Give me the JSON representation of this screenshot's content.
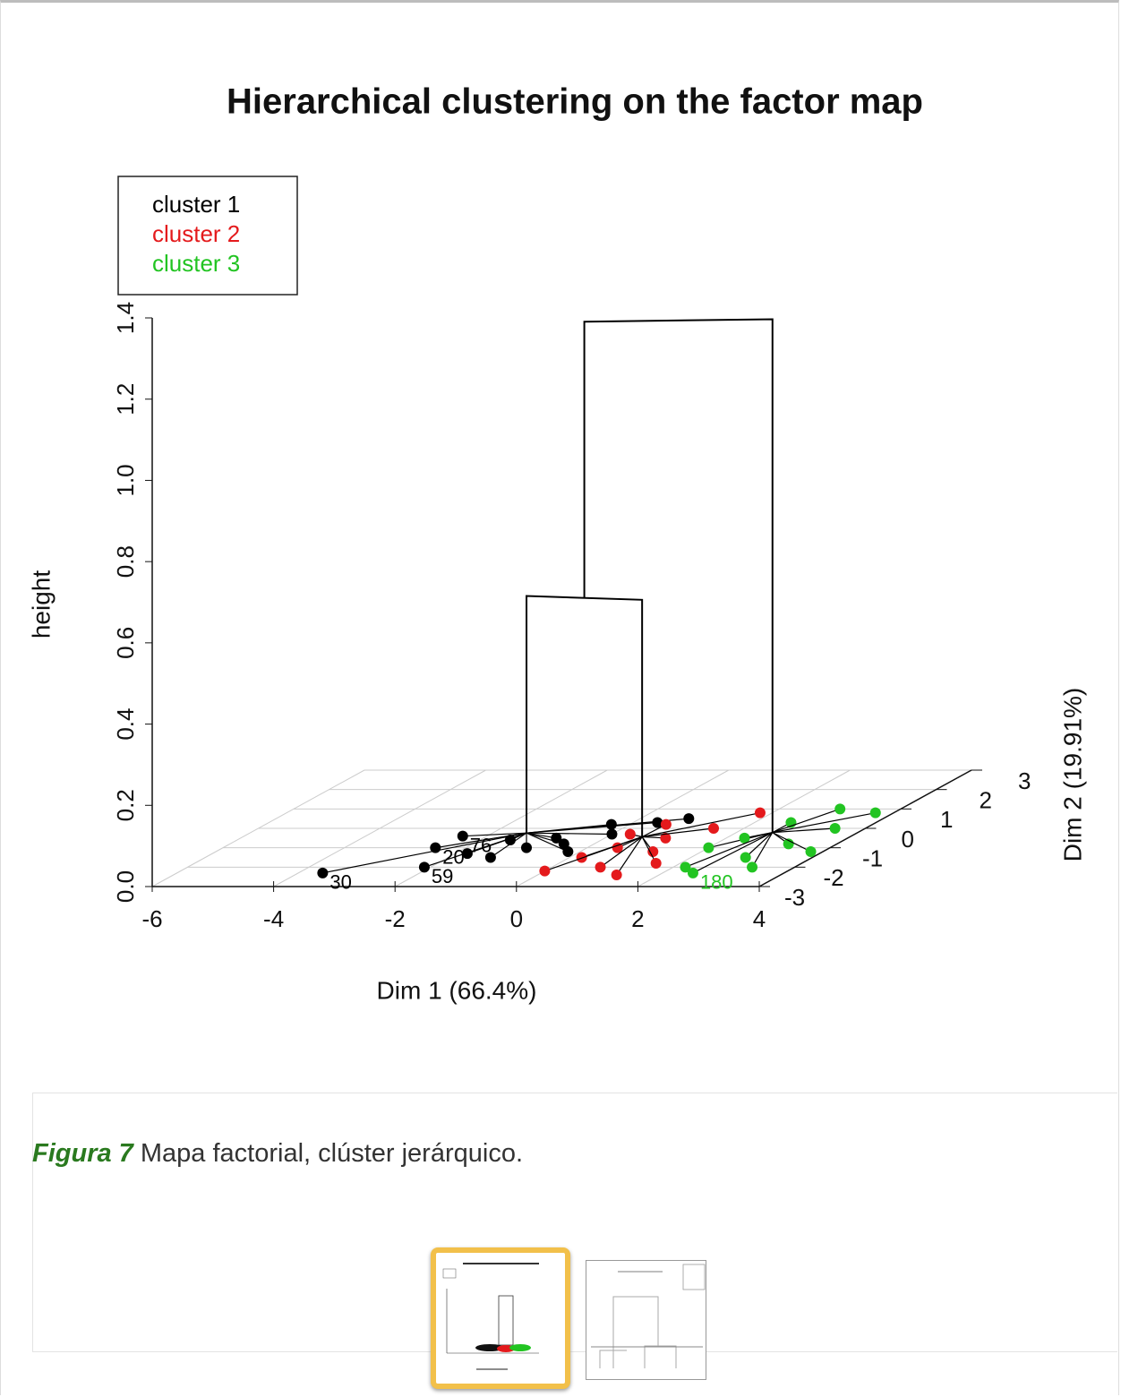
{
  "chart_data": {
    "type": "hcpc3d",
    "title": "Hierarchical clustering on the factor map",
    "xlabel": "Dim 1 (66.4%)",
    "ylabel": "Dim 2 (19.91%)",
    "zlabel": "height",
    "xlim": [
      -6,
      4
    ],
    "xticks": [
      -6,
      -4,
      -2,
      0,
      2,
      4
    ],
    "ylim": [
      -3,
      3
    ],
    "yticks": [
      -3,
      -2,
      -1,
      0,
      1,
      2,
      3
    ],
    "zlim": [
      0,
      1.4
    ],
    "zticks": [
      {
        "value": 0,
        "label": "0.0"
      },
      0.2,
      0.4,
      0.6,
      0.8,
      {
        "value": 1,
        "label": "1.0"
      },
      1.2,
      1.4
    ],
    "grid": true,
    "series": [
      {
        "name": "cluster 1",
        "color": "#000000",
        "x": [
          -3.6,
          -2.5,
          -2.4,
          -2.1,
          -1.8,
          -1.3,
          -1.0,
          -0.8,
          -0.5,
          -0.3,
          0.0,
          0.4,
          0.8,
          -1.5,
          -0.2
        ],
        "y": [
          -2.3,
          -1.0,
          -0.4,
          -2.0,
          -1.3,
          -1.5,
          -1.0,
          -0.5,
          -0.8,
          0.2,
          -0.3,
          0.3,
          0.5,
          -0.6,
          -1.2
        ],
        "labels": [
          "30",
          "20",
          "76",
          "59",
          null,
          null,
          null,
          null,
          null,
          null,
          null,
          null,
          null,
          null,
          null
        ]
      },
      {
        "name": "cluster 2",
        "color": "#e41a1c",
        "x": [
          0.2,
          0.5,
          0.8,
          1.0,
          1.2,
          1.5,
          1.6,
          0.0,
          0.6,
          1.8,
          1.3,
          0.3
        ],
        "y": [
          -1.5,
          -1.0,
          -2.0,
          -0.5,
          -1.2,
          0.0,
          -1.8,
          -2.2,
          0.2,
          0.8,
          -2.4,
          -0.3
        ],
        "labels": [
          null,
          null,
          null,
          null,
          null,
          null,
          null,
          null,
          null,
          null,
          null,
          null
        ]
      },
      {
        "name": "cluster 3",
        "color": "#22c422",
        "x": [
          2.0,
          2.3,
          2.6,
          2.9,
          3.2,
          3.5,
          3.8,
          2.2,
          3.0,
          3.7,
          2.5,
          3.3
        ],
        "y": [
          -1.0,
          -0.5,
          0.3,
          -1.5,
          -0.8,
          0.0,
          -1.2,
          -2.0,
          1.0,
          0.8,
          -2.3,
          -2.0
        ],
        "labels": [
          null,
          null,
          null,
          null,
          null,
          null,
          null,
          null,
          null,
          null,
          "180",
          null
        ]
      }
    ],
    "merge_heights": [
      0.61,
      1.29
    ]
  },
  "caption": {
    "label": "Figura 7",
    "text": "Mapa factorial, clúster jerárquico."
  }
}
